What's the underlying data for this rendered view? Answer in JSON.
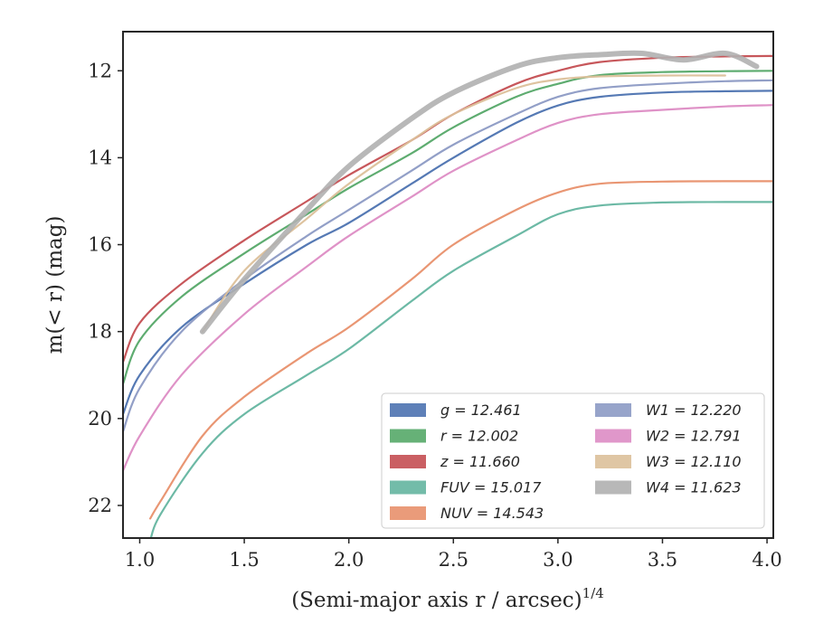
{
  "chart_data": {
    "type": "line",
    "xlabel": "(Semi-major axis r / arcsec)",
    "xlabel_exponent": "1/4",
    "ylabel": "m(< r) (mag)",
    "xlim": [
      0.92,
      4.03
    ],
    "ylim": [
      22.75,
      11.1
    ],
    "y_inverted": true,
    "xticks": [
      1.0,
      1.5,
      2.0,
      2.5,
      3.0,
      3.5,
      4.0
    ],
    "xtick_labels": [
      "1.0",
      "1.5",
      "2.0",
      "2.5",
      "3.0",
      "3.5",
      "4.0"
    ],
    "yticks": [
      12,
      14,
      16,
      18,
      20,
      22
    ],
    "ytick_labels": [
      "12",
      "14",
      "16",
      "18",
      "20",
      "22"
    ],
    "grid": false,
    "legend_position": "lower-right",
    "legend_columns": 2,
    "series": [
      {
        "name": "g = 12.461",
        "band": "g",
        "color": "#4c72b0",
        "x": [
          0.92,
          1.0,
          1.2,
          1.5,
          1.8,
          2.0,
          2.3,
          2.5,
          2.8,
          3.0,
          3.2,
          3.5,
          3.8,
          4.03
        ],
        "y": [
          19.9,
          19.0,
          17.9,
          16.9,
          16.0,
          15.5,
          14.6,
          14.0,
          13.2,
          12.8,
          12.6,
          12.5,
          12.47,
          12.46
        ]
      },
      {
        "name": "r = 12.002",
        "band": "r",
        "color": "#55a868",
        "x": [
          0.92,
          1.0,
          1.2,
          1.5,
          1.8,
          2.0,
          2.3,
          2.5,
          2.8,
          3.0,
          3.2,
          3.5,
          3.8,
          4.03
        ],
        "y": [
          19.2,
          18.2,
          17.2,
          16.2,
          15.3,
          14.7,
          13.9,
          13.3,
          12.6,
          12.3,
          12.1,
          12.03,
          12.01,
          12.0
        ]
      },
      {
        "name": "z = 11.660",
        "band": "z",
        "color": "#c44e52",
        "x": [
          0.92,
          1.0,
          1.2,
          1.5,
          1.8,
          2.0,
          2.3,
          2.5,
          2.8,
          3.0,
          3.2,
          3.5,
          3.8,
          4.03
        ],
        "y": [
          18.7,
          17.8,
          16.9,
          15.9,
          15.0,
          14.4,
          13.6,
          13.0,
          12.3,
          12.0,
          11.8,
          11.7,
          11.67,
          11.66
        ]
      },
      {
        "name": "FUV = 15.017",
        "band": "FUV",
        "color": "#64b5a0",
        "x": [
          1.05,
          1.1,
          1.3,
          1.5,
          1.8,
          2.0,
          2.3,
          2.5,
          2.8,
          3.0,
          3.2,
          3.5,
          3.8,
          4.03
        ],
        "y": [
          22.8,
          22.2,
          20.8,
          19.9,
          19.0,
          18.4,
          17.3,
          16.6,
          15.8,
          15.3,
          15.1,
          15.03,
          15.02,
          15.02
        ]
      },
      {
        "name": "NUV = 14.543",
        "band": "NUV",
        "color": "#e8906c",
        "x": [
          1.05,
          1.1,
          1.3,
          1.5,
          1.8,
          2.0,
          2.3,
          2.5,
          2.8,
          3.0,
          3.2,
          3.5,
          3.8,
          4.03
        ],
        "y": [
          22.3,
          21.9,
          20.4,
          19.5,
          18.5,
          17.9,
          16.8,
          16.0,
          15.2,
          14.8,
          14.6,
          14.55,
          14.54,
          14.54
        ]
      },
      {
        "name": "W1 = 12.220",
        "band": "W1",
        "color": "#8c9ac4",
        "x": [
          0.92,
          1.0,
          1.2,
          1.5,
          1.8,
          2.0,
          2.3,
          2.5,
          2.8,
          3.0,
          3.2,
          3.5,
          3.8,
          4.03
        ],
        "y": [
          20.3,
          19.3,
          18.0,
          16.8,
          15.8,
          15.2,
          14.3,
          13.7,
          13.0,
          12.6,
          12.4,
          12.3,
          12.24,
          12.22
        ]
      },
      {
        "name": "W2 = 12.791",
        "band": "W2",
        "color": "#dd8cc4",
        "x": [
          0.92,
          1.0,
          1.2,
          1.5,
          1.8,
          2.0,
          2.3,
          2.5,
          2.8,
          3.0,
          3.2,
          3.5,
          3.8,
          4.03
        ],
        "y": [
          21.2,
          20.4,
          19.0,
          17.6,
          16.5,
          15.8,
          14.9,
          14.3,
          13.6,
          13.2,
          13.0,
          12.9,
          12.82,
          12.79
        ]
      },
      {
        "name": "W3 = 12.110",
        "band": "W3",
        "color": "#dcc09a",
        "x": [
          1.3,
          1.5,
          1.8,
          2.0,
          2.3,
          2.5,
          2.8,
          3.0,
          3.2,
          3.5,
          3.8
        ],
        "y": [
          18.0,
          16.6,
          15.4,
          14.6,
          13.6,
          13.0,
          12.4,
          12.2,
          12.13,
          12.11,
          12.11
        ]
      },
      {
        "name": "W4 = 11.623",
        "band": "W4",
        "color": "#b0b0b0",
        "x": [
          1.3,
          1.5,
          1.8,
          2.0,
          2.3,
          2.5,
          2.8,
          3.0,
          3.2,
          3.4,
          3.6,
          3.8,
          3.95
        ],
        "y": [
          18.0,
          16.8,
          15.2,
          14.2,
          13.1,
          12.5,
          11.9,
          11.7,
          11.63,
          11.6,
          11.75,
          11.6,
          11.9
        ]
      }
    ]
  }
}
